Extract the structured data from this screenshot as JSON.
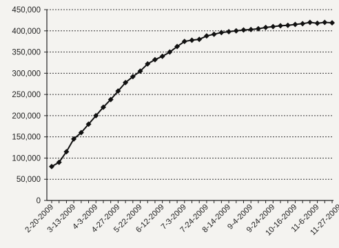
{
  "chart_data": {
    "type": "line",
    "title": "",
    "xlabel": "",
    "ylabel": "",
    "ylim": [
      0,
      450000
    ],
    "y_ticks": [
      0,
      50000,
      100000,
      150000,
      200000,
      250000,
      300000,
      350000,
      400000,
      450000
    ],
    "y_tick_labels": [
      "0",
      "50,000",
      "100,000",
      "150,000",
      "200,000",
      "250,000",
      "300,000",
      "350,000",
      "400,000",
      "450,000"
    ],
    "x_tick_labels": [
      "2-20-2009",
      "3-13-2009",
      "4-3-2009",
      "4-27-2009",
      "5-22-2009",
      "6-12-2009",
      "7-3-2009",
      "7-24-2009",
      "8-14-2009",
      "9-4-2009",
      "9-24-2009",
      "10-16-2009",
      "11-6-2009",
      "11-27-2009"
    ],
    "grid": "horizontal dotted",
    "legend": "none",
    "series_color": "#111111",
    "marker": "diamond",
    "values": [
      80000,
      90000,
      115000,
      145000,
      160000,
      180000,
      200000,
      220000,
      238000,
      258000,
      278000,
      292000,
      305000,
      322000,
      332000,
      340000,
      350000,
      363000,
      375000,
      378000,
      380000,
      388000,
      392000,
      396000,
      398000,
      400000,
      402000,
      403000,
      405000,
      408000,
      410000,
      412000,
      413000,
      415000,
      417000,
      420000,
      418000,
      420000,
      419000
    ]
  }
}
